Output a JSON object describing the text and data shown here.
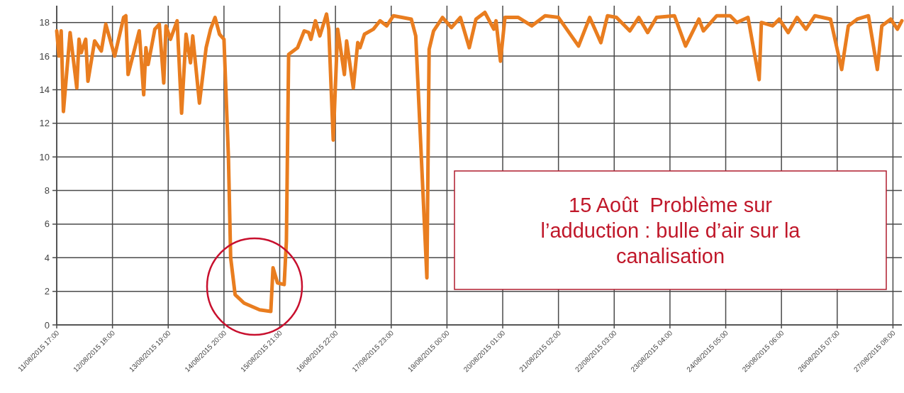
{
  "chart_data": {
    "type": "line",
    "x": [
      "2015-08-11T17:00",
      "2015-08-11T18:00",
      "2015-08-11T19:00",
      "2015-08-11T20:00",
      "2015-08-11T23:00",
      "2015-08-12T02:00",
      "2015-08-12T03:00",
      "2015-08-12T04:00",
      "2015-08-12T06:00",
      "2015-08-12T07:00",
      "2015-08-12T10:00",
      "2015-08-12T13:00",
      "2015-08-12T15:00",
      "2015-08-12T19:00",
      "2015-08-12T23:00",
      "2015-08-13T00:00",
      "2015-08-13T01:00",
      "2015-08-13T06:00",
      "2015-08-13T08:00",
      "2015-08-13T09:00",
      "2015-08-13T10:00",
      "2015-08-13T13:00",
      "2015-08-13T15:00",
      "2015-08-13T17:00",
      "2015-08-13T18:00",
      "2015-08-13T20:00",
      "2015-08-13T23:00",
      "2015-08-14T01:00",
      "2015-08-14T03:00",
      "2015-08-14T05:00",
      "2015-08-14T06:00",
      "2015-08-14T09:00",
      "2015-08-14T12:00",
      "2015-08-14T14:00",
      "2015-08-14T16:00",
      "2015-08-14T18:00",
      "2015-08-14T20:00",
      "2015-08-14T22:00",
      "2015-08-14T23:00",
      "2015-08-15T01:00",
      "2015-08-15T05:00",
      "2015-08-15T12:00",
      "2015-08-15T17:00",
      "2015-08-15T18:00",
      "2015-08-15T20:00",
      "2015-08-15T23:00",
      "2015-08-16T00:00",
      "2015-08-16T01:00",
      "2015-08-16T05:00",
      "2015-08-16T08:00",
      "2015-08-16T10:00",
      "2015-08-16T11:00",
      "2015-08-16T13:00",
      "2015-08-16T15:00",
      "2015-08-16T18:00",
      "2015-08-16T19:00",
      "2015-08-16T21:00",
      "2015-08-16T23:00",
      "2015-08-17T02:00",
      "2015-08-17T03:00",
      "2015-08-17T06:00",
      "2015-08-17T08:00",
      "2015-08-17T09:00",
      "2015-08-17T11:00",
      "2015-08-17T15:00",
      "2015-08-17T18:00",
      "2015-08-17T21:00",
      "2015-08-18T00:00",
      "2015-08-18T08:00",
      "2015-08-18T10:00",
      "2015-08-18T15:00",
      "2015-08-18T16:00",
      "2015-08-18T18:00",
      "2015-08-18T22:00",
      "2015-08-19T02:00",
      "2015-08-19T06:00",
      "2015-08-19T10:00",
      "2015-08-19T13:00",
      "2015-08-19T17:00",
      "2015-08-19T21:00",
      "2015-08-19T22:00",
      "2015-08-20T00:00",
      "2015-08-20T02:00",
      "2015-08-20T08:00",
      "2015-08-20T14:00",
      "2015-08-20T20:00",
      "2015-08-21T02:00",
      "2015-08-21T11:00",
      "2015-08-21T16:00",
      "2015-08-21T21:00",
      "2015-08-22T00:00",
      "2015-08-22T04:00",
      "2015-08-22T10:00",
      "2015-08-22T14:00",
      "2015-08-22T18:00",
      "2015-08-22T22:00",
      "2015-08-23T06:00",
      "2015-08-23T11:00",
      "2015-08-23T17:00",
      "2015-08-23T19:00",
      "2015-08-24T01:00",
      "2015-08-24T07:00",
      "2015-08-24T10:00",
      "2015-08-24T15:00",
      "2015-08-24T20:00",
      "2015-08-24T21:00",
      "2015-08-25T02:00",
      "2015-08-25T05:00",
      "2015-08-25T09:00",
      "2015-08-25T13:00",
      "2015-08-25T17:00",
      "2015-08-25T21:00",
      "2015-08-26T04:00",
      "2015-08-26T09:00",
      "2015-08-26T12:00",
      "2015-08-26T16:00",
      "2015-08-26T21:00",
      "2015-08-27T01:00",
      "2015-08-27T03:00",
      "2015-08-27T07:00",
      "2015-08-27T10:00",
      "2015-08-27T12:00"
    ],
    "series": [
      {
        "color": "#e97d1f",
        "values": [
          17.5,
          16.0,
          17.5,
          12.7,
          17.4,
          14.1,
          17.0,
          16.2,
          17.0,
          14.5,
          16.9,
          16.3,
          17.9,
          16.0,
          18.3,
          18.4,
          14.9,
          17.5,
          13.7,
          16.5,
          15.5,
          17.6,
          17.9,
          14.4,
          17.8,
          17.0,
          18.1,
          12.6,
          17.3,
          15.6,
          17.2,
          13.2,
          16.5,
          17.6,
          18.3,
          17.3,
          17.0,
          10.0,
          4.0,
          1.8,
          1.3,
          0.9,
          0.8,
          3.4,
          2.5,
          2.4,
          5.0,
          16.1,
          16.5,
          17.5,
          17.4,
          17.0,
          18.1,
          17.2,
          18.5,
          17.6,
          11.0,
          17.6,
          14.9,
          16.9,
          14.1,
          16.8,
          16.5,
          17.3,
          17.6,
          18.1,
          17.8,
          18.4,
          18.2,
          17.2,
          2.8,
          16.4,
          17.5,
          18.3,
          17.7,
          18.3,
          16.5,
          18.2,
          18.6,
          17.6,
          18.1,
          15.7,
          18.3,
          18.3,
          17.8,
          18.4,
          18.3,
          16.6,
          18.3,
          16.8,
          18.4,
          18.3,
          17.5,
          18.3,
          17.4,
          18.3,
          18.4,
          16.6,
          18.2,
          17.5,
          18.4,
          18.4,
          18.0,
          18.3,
          14.6,
          18.0,
          17.8,
          18.2,
          17.4,
          18.3,
          17.6,
          18.4,
          18.2,
          15.2,
          17.8,
          18.2,
          18.4,
          15.2,
          17.8,
          18.2,
          17.6,
          18.1
        ]
      }
    ],
    "xlim": [
      "2015-08-11T17:00",
      "2015-08-27T12:00"
    ],
    "xticks": [
      {
        "value": "2015-08-11T17:00",
        "label": "11/08/2015 17:00"
      },
      {
        "value": "2015-08-12T18:00",
        "label": "12/08/2015 18:00"
      },
      {
        "value": "2015-08-13T19:00",
        "label": "13/08/2015 19:00"
      },
      {
        "value": "2015-08-14T20:00",
        "label": "14/08/2015 20:00"
      },
      {
        "value": "2015-08-15T21:00",
        "label": "15/08/2015 21:00"
      },
      {
        "value": "2015-08-16T22:00",
        "label": "16/08/2015 22:00"
      },
      {
        "value": "2015-08-17T23:00",
        "label": "17/08/2015 23:00"
      },
      {
        "value": "2015-08-19T00:00",
        "label": "19/08/2015 00:00"
      },
      {
        "value": "2015-08-20T01:00",
        "label": "20/08/2015 01:00"
      },
      {
        "value": "2015-08-21T02:00",
        "label": "21/08/2015 02:00"
      },
      {
        "value": "2015-08-22T03:00",
        "label": "22/08/2015 03:00"
      },
      {
        "value": "2015-08-23T04:00",
        "label": "23/08/2015 04:00"
      },
      {
        "value": "2015-08-24T05:00",
        "label": "24/08/2015 05:00"
      },
      {
        "value": "2015-08-25T06:00",
        "label": "25/08/2015 06:00"
      },
      {
        "value": "2015-08-26T07:00",
        "label": "26/08/2015 07:00"
      },
      {
        "value": "2015-08-27T08:00",
        "label": "27/08/2015 08:00"
      }
    ],
    "ylim": [
      0,
      19
    ],
    "yticks": [
      0,
      2,
      4,
      6,
      8,
      10,
      12,
      14,
      16,
      18
    ],
    "grid": true,
    "annotations": [
      "15 Août  Problème sur l’adduction : bulle d’air sur la canalisation"
    ]
  }
}
